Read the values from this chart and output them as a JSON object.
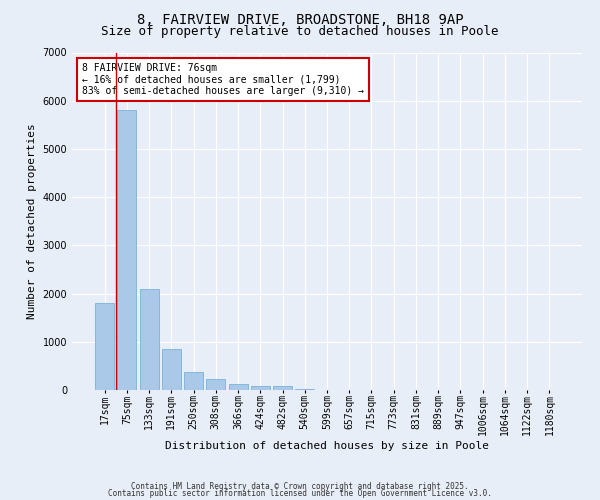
{
  "title1": "8, FAIRVIEW DRIVE, BROADSTONE, BH18 9AP",
  "title2": "Size of property relative to detached houses in Poole",
  "xlabel": "Distribution of detached houses by size in Poole",
  "ylabel": "Number of detached properties",
  "categories": [
    "17sqm",
    "75sqm",
    "133sqm",
    "191sqm",
    "250sqm",
    "308sqm",
    "366sqm",
    "424sqm",
    "482sqm",
    "540sqm",
    "599sqm",
    "657sqm",
    "715sqm",
    "773sqm",
    "831sqm",
    "889sqm",
    "947sqm",
    "1006sqm",
    "1064sqm",
    "1122sqm",
    "1180sqm"
  ],
  "values": [
    1800,
    5800,
    2100,
    850,
    380,
    230,
    130,
    90,
    90,
    30,
    10,
    5,
    0,
    0,
    0,
    0,
    0,
    0,
    0,
    0,
    0
  ],
  "bar_color": "#aac9e8",
  "bar_edge_color": "#6aaad4",
  "highlight_color": "#cc0000",
  "highlight_bar_index": 1,
  "ylim": [
    0,
    7000
  ],
  "yticks": [
    0,
    1000,
    2000,
    3000,
    4000,
    5000,
    6000,
    7000
  ],
  "annotation_title": "8 FAIRVIEW DRIVE: 76sqm",
  "annotation_line1": "← 16% of detached houses are smaller (1,799)",
  "annotation_line2": "83% of semi-detached houses are larger (9,310) →",
  "annotation_box_edgecolor": "#cc0000",
  "bg_color": "#e8eef8",
  "grid_color": "#ffffff",
  "footer1": "Contains HM Land Registry data © Crown copyright and database right 2025.",
  "footer2": "Contains public sector information licensed under the Open Government Licence v3.0.",
  "title_fontsize": 10,
  "subtitle_fontsize": 9,
  "ylabel_fontsize": 8,
  "xlabel_fontsize": 8,
  "tick_fontsize": 7,
  "annot_fontsize": 7,
  "footer_fontsize": 5.5
}
